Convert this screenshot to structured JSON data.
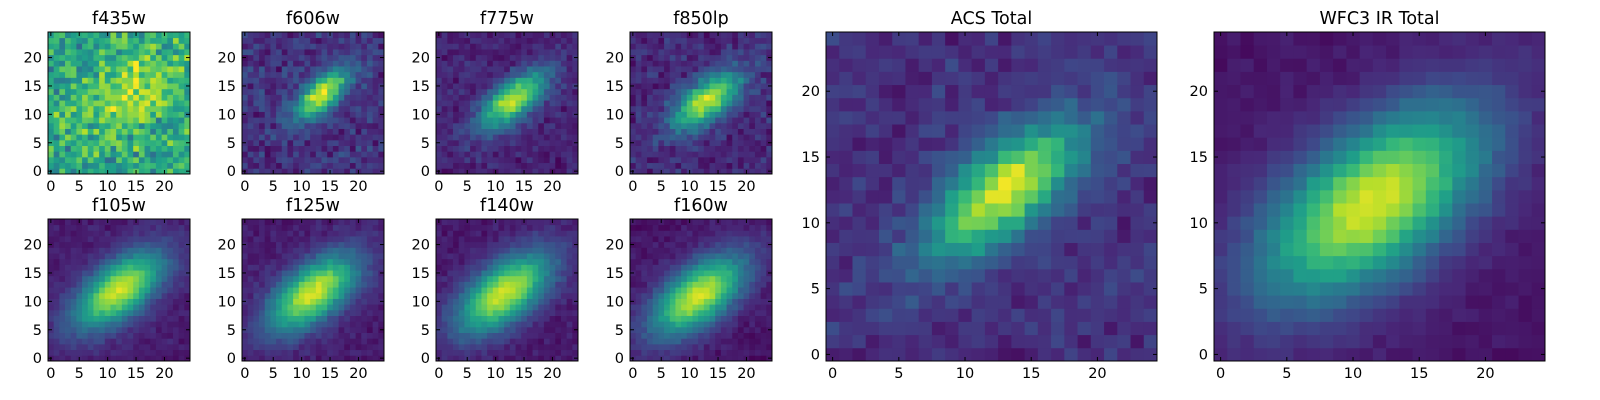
{
  "figure": {
    "colormap": "viridis",
    "colormap_stops": [
      "#440154",
      "#482878",
      "#3e4989",
      "#31688e",
      "#26828e",
      "#1f9e89",
      "#35b779",
      "#6ece58",
      "#b5de2b",
      "#fde725"
    ]
  },
  "chart_data": [
    {
      "type": "heatmap",
      "title": "f435w",
      "shape": [
        25,
        25
      ],
      "xlim": [
        0,
        24
      ],
      "ylim": [
        0,
        24
      ],
      "xticks": [
        "0",
        "5",
        "10",
        "15",
        "20"
      ],
      "yticks": [
        "0",
        "5",
        "10",
        "15",
        "20"
      ],
      "model": {
        "cx": 14,
        "cy": 14,
        "angle_deg": 40,
        "sig_major": 6,
        "sig_minor": 4,
        "peak": 0.25,
        "background": 0.6,
        "noise": 0.28,
        "seed": 11
      }
    },
    {
      "type": "heatmap",
      "title": "f606w",
      "shape": [
        25,
        25
      ],
      "xlim": [
        0,
        24
      ],
      "ylim": [
        0,
        24
      ],
      "xticks": [
        "0",
        "5",
        "10",
        "15",
        "20"
      ],
      "yticks": [
        "0",
        "5",
        "10",
        "15",
        "20"
      ],
      "model": {
        "cx": 13.5,
        "cy": 13.5,
        "angle_deg": 40,
        "sig_major": 4.2,
        "sig_minor": 1.8,
        "peak": 0.78,
        "background": 0.15,
        "noise": 0.14,
        "seed": 23
      }
    },
    {
      "type": "heatmap",
      "title": "f775w",
      "shape": [
        25,
        25
      ],
      "xlim": [
        0,
        24
      ],
      "ylim": [
        0,
        24
      ],
      "xticks": [
        "0",
        "5",
        "10",
        "15",
        "20"
      ],
      "yticks": [
        "0",
        "5",
        "10",
        "15",
        "20"
      ],
      "model": {
        "cx": 13,
        "cy": 12.5,
        "angle_deg": 38,
        "sig_major": 5,
        "sig_minor": 2.2,
        "peak": 0.8,
        "background": 0.1,
        "noise": 0.1,
        "seed": 37
      }
    },
    {
      "type": "heatmap",
      "title": "f850lp",
      "shape": [
        25,
        25
      ],
      "xlim": [
        0,
        24
      ],
      "ylim": [
        0,
        24
      ],
      "xticks": [
        "0",
        "5",
        "10",
        "15",
        "20"
      ],
      "yticks": [
        "0",
        "5",
        "10",
        "15",
        "20"
      ],
      "model": {
        "cx": 13,
        "cy": 12.5,
        "angle_deg": 38,
        "sig_major": 5,
        "sig_minor": 2.3,
        "peak": 0.78,
        "background": 0.12,
        "noise": 0.12,
        "seed": 41
      }
    },
    {
      "type": "heatmap",
      "title": "f105w",
      "shape": [
        25,
        25
      ],
      "xlim": [
        0,
        24
      ],
      "ylim": [
        0,
        24
      ],
      "xticks": [
        "0",
        "5",
        "10",
        "15",
        "20"
      ],
      "yticks": [
        "0",
        "5",
        "10",
        "15",
        "20"
      ],
      "model": {
        "cx": 12,
        "cy": 12,
        "angle_deg": 38,
        "sig_major": 6.5,
        "sig_minor": 3.2,
        "peak": 0.85,
        "background": 0.08,
        "noise": 0.06,
        "seed": 53
      }
    },
    {
      "type": "heatmap",
      "title": "f125w",
      "shape": [
        25,
        25
      ],
      "xlim": [
        0,
        24
      ],
      "ylim": [
        0,
        24
      ],
      "xticks": [
        "0",
        "5",
        "10",
        "15",
        "20"
      ],
      "yticks": [
        "0",
        "5",
        "10",
        "15",
        "20"
      ],
      "model": {
        "cx": 12,
        "cy": 11.5,
        "angle_deg": 38,
        "sig_major": 6.5,
        "sig_minor": 3.2,
        "peak": 0.86,
        "background": 0.08,
        "noise": 0.06,
        "seed": 67
      }
    },
    {
      "type": "heatmap",
      "title": "f140w",
      "shape": [
        25,
        25
      ],
      "xlim": [
        0,
        24
      ],
      "ylim": [
        0,
        24
      ],
      "xticks": [
        "0",
        "5",
        "10",
        "15",
        "20"
      ],
      "yticks": [
        "0",
        "5",
        "10",
        "15",
        "20"
      ],
      "model": {
        "cx": 11.5,
        "cy": 11.5,
        "angle_deg": 38,
        "sig_major": 6.8,
        "sig_minor": 3.4,
        "peak": 0.86,
        "background": 0.07,
        "noise": 0.06,
        "seed": 79
      }
    },
    {
      "type": "heatmap",
      "title": "f160w",
      "shape": [
        25,
        25
      ],
      "xlim": [
        0,
        24
      ],
      "ylim": [
        0,
        24
      ],
      "xticks": [
        "0",
        "5",
        "10",
        "15",
        "20"
      ],
      "yticks": [
        "0",
        "5",
        "10",
        "15",
        "20"
      ],
      "model": {
        "cx": 11.5,
        "cy": 11,
        "angle_deg": 38,
        "sig_major": 6.8,
        "sig_minor": 3.4,
        "peak": 0.87,
        "background": 0.06,
        "noise": 0.06,
        "seed": 83
      }
    },
    {
      "type": "heatmap",
      "title": "ACS Total",
      "shape": [
        25,
        25
      ],
      "xlim": [
        0,
        24
      ],
      "ylim": [
        0,
        24
      ],
      "xticks": [
        "0",
        "5",
        "10",
        "15",
        "20"
      ],
      "yticks": [
        "0",
        "5",
        "10",
        "15",
        "20"
      ],
      "model": {
        "cx": 13,
        "cy": 12.5,
        "angle_deg": 40,
        "sig_major": 5,
        "sig_minor": 2.2,
        "peak": 0.8,
        "background": 0.14,
        "noise": 0.1,
        "seed": 97
      }
    },
    {
      "type": "heatmap",
      "title": "WFC3 IR Total",
      "shape": [
        25,
        25
      ],
      "xlim": [
        0,
        24
      ],
      "ylim": [
        0,
        24
      ],
      "xticks": [
        "0",
        "5",
        "10",
        "15",
        "20"
      ],
      "yticks": [
        "0",
        "5",
        "10",
        "15",
        "20"
      ],
      "model": {
        "cx": 11.5,
        "cy": 11.5,
        "angle_deg": 38,
        "sig_major": 7,
        "sig_minor": 3.6,
        "peak": 0.88,
        "background": 0.06,
        "noise": 0.04,
        "seed": 101
      }
    }
  ]
}
